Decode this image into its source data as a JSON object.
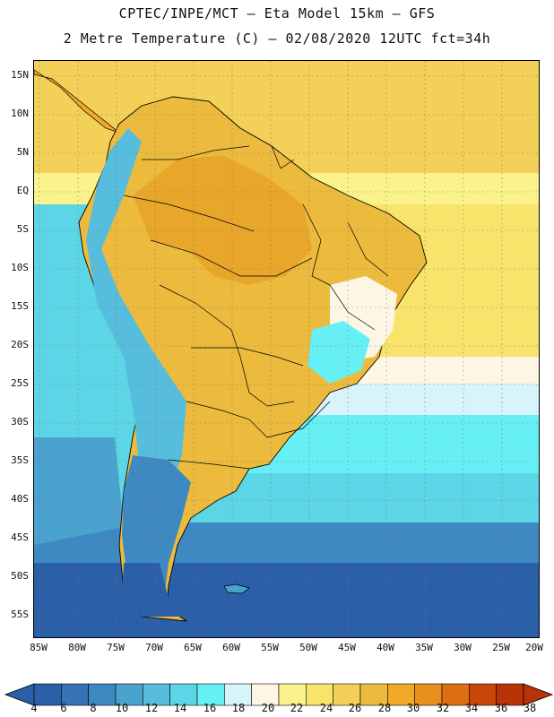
{
  "title": {
    "line1": "CPTEC/INPE/MCT –  Eta Model 15km – GFS",
    "line2": "2 Metre Temperature (C) – 02/08/2020 12UTC fct=34h"
  },
  "lat_labels": [
    "15N",
    "10N",
    "5N",
    "EQ",
    "5S",
    "10S",
    "15S",
    "20S",
    "25S",
    "30S",
    "35S",
    "40S",
    "45S",
    "50S",
    "55S"
  ],
  "lon_labels": [
    "85W",
    "80W",
    "75W",
    "70W",
    "65W",
    "60W",
    "55W",
    "50W",
    "45W",
    "40W",
    "35W",
    "30W",
    "25W",
    "20W"
  ],
  "colorbar": {
    "labels": [
      "4",
      "6",
      "8",
      "10",
      "12",
      "14",
      "16",
      "18",
      "20",
      "22",
      "24",
      "26",
      "28",
      "30",
      "32",
      "34",
      "36",
      "38"
    ],
    "colors": [
      "#2b5fa8",
      "#3573b5",
      "#3f89c2",
      "#4aa3cf",
      "#56bddc",
      "#5cd6e6",
      "#66f0f5",
      "#d6f4fa",
      "#fdf6e4",
      "#faf38c",
      "#f9e46b",
      "#f3d057",
      "#ecbb3d",
      "#f0a928",
      "#e8901e",
      "#de6e14",
      "#c74608",
      "#b83306"
    ]
  },
  "map": {
    "ocean_colors": {
      "north": "#f3d057",
      "north_coast": "#faf38c",
      "equator": "#fdf6e4",
      "subtropical": "#d6f4fa",
      "cyan": "#66f0f5",
      "mid": "#5cd6e6",
      "south_mid": "#3f89c2",
      "south": "#2b5fa8"
    },
    "land_colors": {
      "amazon": "#e8a62a",
      "central": "#ecbb3d",
      "brazil_highlands": "#ffffff",
      "southeast": "#66f0f5",
      "south": "#f3d057",
      "andes": "#56bddc",
      "patagonia": "#3f89c2",
      "patagonia_south": "#2b5fa8"
    }
  }
}
